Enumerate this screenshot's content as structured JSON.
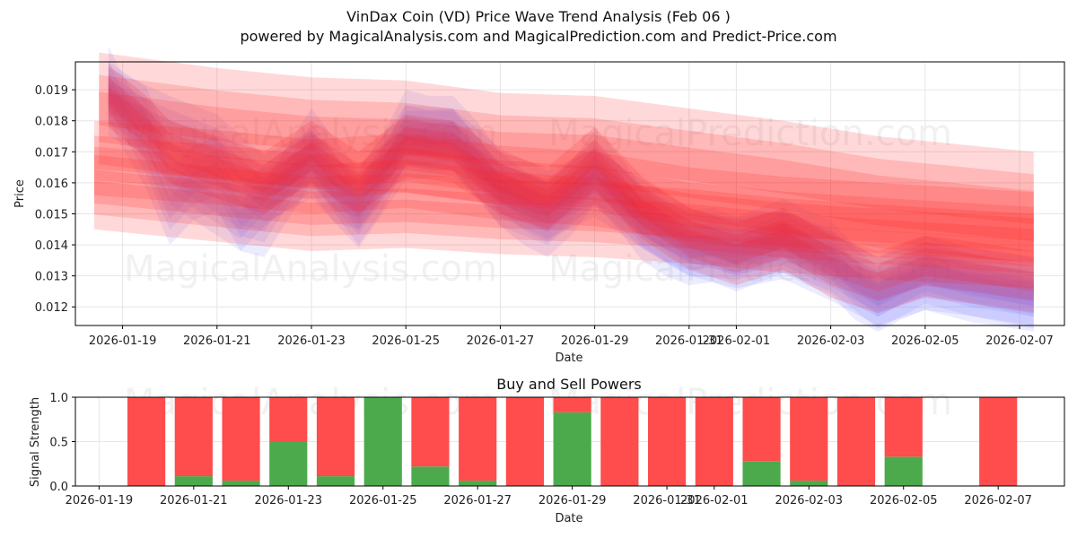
{
  "title": "VinDax Coin (VD) Price Wave Trend Analysis (Feb 06 )",
  "subtitle": "powered by MagicalAnalysis.com and MagicalPrediction.com and Predict-Price.com",
  "watermarks": [
    "MagicalAnalysis.com",
    "MagicalPrediction.com"
  ],
  "colors": {
    "red": "#ff2020",
    "blue": "#6f6fff",
    "buy": "#4caa4c",
    "sell": "#ff4c4c",
    "frame": "#000000",
    "grid": "#e6e6e6"
  },
  "chart_data": [
    {
      "type": "area",
      "title": "",
      "xlabel": "Date",
      "ylabel": "Price",
      "ylim": [
        0.0114,
        0.0199
      ],
      "yticks": [
        "0.012",
        "0.013",
        "0.014",
        "0.015",
        "0.016",
        "0.017",
        "0.018",
        "0.019"
      ],
      "xlim": [
        -1.0,
        19.95
      ],
      "xticks": [
        {
          "d": 0,
          "label": "2026-01-19"
        },
        {
          "d": 2,
          "label": "2026-01-21"
        },
        {
          "d": 4,
          "label": "2026-01-23"
        },
        {
          "d": 6,
          "label": "2026-01-25"
        },
        {
          "d": 8,
          "label": "2026-01-27"
        },
        {
          "d": 10,
          "label": "2026-01-29"
        },
        {
          "d": 12,
          "label": "2026-01-31"
        },
        {
          "d": 13,
          "label": "2026-02-01"
        },
        {
          "d": 15,
          "label": "2026-02-03"
        },
        {
          "d": 17,
          "label": "2026-02-05"
        },
        {
          "d": 19,
          "label": "2026-02-07"
        }
      ],
      "series": [
        {
          "name": "blue_wave_1",
          "color": "blue",
          "x": [
            -0.3,
            0,
            0.5,
            1,
            1.5,
            2,
            2.5,
            3,
            3.5,
            4,
            4.5,
            5,
            5.5,
            6,
            6.5,
            7,
            7.5,
            8,
            8.5,
            9,
            9.5,
            10,
            10.5,
            11,
            11.5,
            12,
            12.5,
            13,
            13.5,
            14,
            14.5,
            15,
            15.5,
            16,
            16.5,
            17,
            17.5,
            18,
            18.5,
            19.3
          ],
          "values": [
            0.0192,
            0.0183,
            0.017,
            0.0152,
            0.016,
            0.0163,
            0.015,
            0.0148,
            0.016,
            0.0172,
            0.0162,
            0.0152,
            0.0163,
            0.0178,
            0.0176,
            0.0176,
            0.0168,
            0.0158,
            0.0152,
            0.0148,
            0.0155,
            0.0165,
            0.0157,
            0.0147,
            0.0142,
            0.0139,
            0.014,
            0.0137,
            0.014,
            0.0143,
            0.0139,
            0.0136,
            0.0128,
            0.0124,
            0.0128,
            0.0131,
            0.0129,
            0.0127,
            0.0126,
            0.0124
          ],
          "width": 0.0012
        },
        {
          "name": "blue_wave_2",
          "color": "blue",
          "x": [
            -0.3,
            0.5,
            1,
            2,
            2.5,
            3,
            4,
            4.5,
            5,
            6,
            7,
            8,
            9,
            10,
            11,
            12,
            13,
            14,
            15,
            16,
            17,
            18,
            19.3
          ],
          "values": [
            0.0189,
            0.0181,
            0.0163,
            0.0153,
            0.0148,
            0.0156,
            0.0167,
            0.0157,
            0.0155,
            0.0175,
            0.0174,
            0.0156,
            0.015,
            0.0163,
            0.0149,
            0.014,
            0.0139,
            0.0141,
            0.0135,
            0.0123,
            0.0131,
            0.0127,
            0.0123
          ],
          "width": 0.001
        },
        {
          "name": "blue_wave_3",
          "color": "blue",
          "x": [
            -0.3,
            1,
            2,
            3,
            4,
            5,
            6,
            7,
            8,
            9,
            10,
            11,
            12,
            13,
            14,
            15,
            16,
            17,
            18,
            19.3
          ],
          "values": [
            0.0186,
            0.0177,
            0.0171,
            0.0158,
            0.0166,
            0.015,
            0.0172,
            0.0173,
            0.016,
            0.0153,
            0.016,
            0.015,
            0.0141,
            0.0137,
            0.014,
            0.0133,
            0.0125,
            0.013,
            0.0128,
            0.0125
          ],
          "width": 0.0011
        },
        {
          "name": "red_trend_upper",
          "color": "red",
          "x": [
            -0.5,
            2,
            4,
            6,
            8,
            10,
            12,
            14,
            16,
            19.3
          ],
          "values": [
            0.0184,
            0.0179,
            0.0176,
            0.0175,
            0.0171,
            0.017,
            0.0166,
            0.0162,
            0.0157,
            0.0152
          ],
          "width": 0.0018
        },
        {
          "name": "red_trend_mid",
          "color": "red",
          "x": [
            -0.6,
            2,
            4,
            6,
            8,
            10,
            12,
            14,
            16,
            19.3
          ],
          "values": [
            0.0168,
            0.0165,
            0.0162,
            0.0164,
            0.016,
            0.0158,
            0.0153,
            0.015,
            0.0148,
            0.0145
          ],
          "width": 0.0012
        },
        {
          "name": "red_trend_low",
          "color": "red",
          "x": [
            -0.6,
            2,
            4,
            6,
            8,
            10,
            12,
            14,
            16,
            19.3
          ],
          "values": [
            0.0157,
            0.0153,
            0.015,
            0.0151,
            0.0149,
            0.0148,
            0.0146,
            0.0143,
            0.0141,
            0.0138
          ],
          "width": 0.0012
        },
        {
          "name": "red_wave",
          "color": "red",
          "x": [
            -0.3,
            0.5,
            1,
            2,
            3,
            4,
            4.5,
            5,
            6,
            7,
            8,
            9,
            10,
            11,
            12,
            13,
            14,
            15,
            16,
            17,
            18,
            19.3
          ],
          "values": [
            0.0188,
            0.0178,
            0.017,
            0.0165,
            0.016,
            0.017,
            0.0165,
            0.016,
            0.0172,
            0.017,
            0.016,
            0.0155,
            0.0168,
            0.0152,
            0.0142,
            0.0137,
            0.0142,
            0.0133,
            0.0128,
            0.0133,
            0.0131,
            0.0128
          ],
          "width": 0.001
        }
      ]
    },
    {
      "type": "bar",
      "title": "Buy and Sell Powers",
      "xlabel": "Date",
      "ylabel": "Signal Strength",
      "ylim": [
        0,
        1
      ],
      "yticks": [
        "0.0",
        "0.5",
        "1.0"
      ],
      "xlim": [
        -0.5,
        20.4
      ],
      "xticks": [
        {
          "d": 0,
          "label": "2026-01-19"
        },
        {
          "d": 2,
          "label": "2026-01-21"
        },
        {
          "d": 4,
          "label": "2026-01-23"
        },
        {
          "d": 6,
          "label": "2026-01-25"
        },
        {
          "d": 8,
          "label": "2026-01-27"
        },
        {
          "d": 10,
          "label": "2026-01-29"
        },
        {
          "d": 12,
          "label": "2026-01-31"
        },
        {
          "d": 13,
          "label": "2026-02-01"
        },
        {
          "d": 15,
          "label": "2026-02-03"
        },
        {
          "d": 17,
          "label": "2026-02-05"
        },
        {
          "d": 19,
          "label": "2026-02-07"
        }
      ],
      "bars": [
        {
          "d": 1,
          "buy": 0.0,
          "sell": 1.0
        },
        {
          "d": 2,
          "buy": 0.11,
          "sell": 0.89
        },
        {
          "d": 3,
          "buy": 0.06,
          "sell": 0.94
        },
        {
          "d": 4,
          "buy": 0.5,
          "sell": 0.5
        },
        {
          "d": 5,
          "buy": 0.11,
          "sell": 0.89
        },
        {
          "d": 6,
          "buy": 1.0,
          "sell": 0.0
        },
        {
          "d": 7,
          "buy": 0.22,
          "sell": 0.78
        },
        {
          "d": 8,
          "buy": 0.06,
          "sell": 0.94
        },
        {
          "d": 9,
          "buy": 0.0,
          "sell": 1.0
        },
        {
          "d": 10,
          "buy": 0.83,
          "sell": 0.17
        },
        {
          "d": 11,
          "buy": 0.0,
          "sell": 1.0
        },
        {
          "d": 12,
          "buy": 0.0,
          "sell": 1.0
        },
        {
          "d": 13,
          "buy": 0.0,
          "sell": 1.0
        },
        {
          "d": 14,
          "buy": 0.28,
          "sell": 0.72
        },
        {
          "d": 15,
          "buy": 0.06,
          "sell": 0.94
        },
        {
          "d": 16,
          "buy": 0.0,
          "sell": 1.0
        },
        {
          "d": 17,
          "buy": 0.33,
          "sell": 0.67
        },
        {
          "d": 19,
          "buy": 0.0,
          "sell": 1.0
        }
      ]
    }
  ]
}
